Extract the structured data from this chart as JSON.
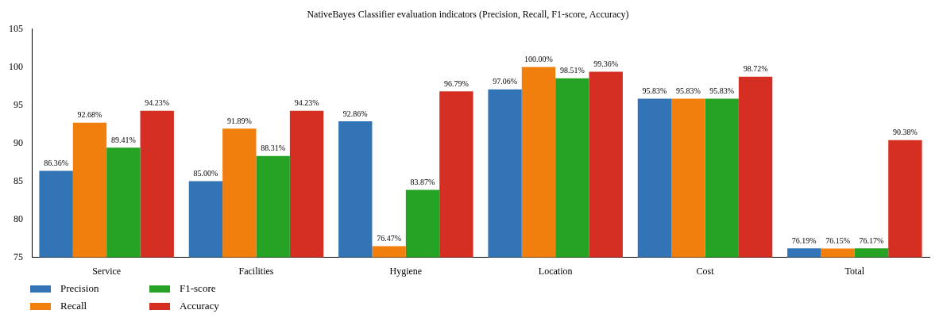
{
  "chart_data": {
    "type": "bar",
    "title": "NativeBayes Classifier evaluation indicators (Precision, Recall, F1-score, Accuracy)",
    "categories": [
      "Service",
      "Facilities",
      "Hygiene",
      "Location",
      "Cost",
      "Total"
    ],
    "series": [
      {
        "name": "Precision",
        "color": "#3274b5",
        "values": [
          86.36,
          85.0,
          92.86,
          97.06,
          95.83,
          76.19
        ],
        "value_labels": [
          "86.36%",
          "85.00%",
          "92.86%",
          "97.06%",
          "95.83%",
          "76.19%"
        ]
      },
      {
        "name": "Recall",
        "color": "#f07f0e",
        "values": [
          92.68,
          91.89,
          76.47,
          100.0,
          95.83,
          76.15
        ],
        "value_labels": [
          "92.68%",
          "91.89%",
          "76.47%",
          "100.00%",
          "95.83%",
          "76.15%"
        ]
      },
      {
        "name": "F1-score",
        "color": "#26a325",
        "values": [
          89.41,
          88.31,
          83.87,
          98.51,
          95.83,
          76.17
        ],
        "value_labels": [
          "89.41%",
          "88.31%",
          "83.87%",
          "98.51%",
          "95.83%",
          "76.17%"
        ]
      },
      {
        "name": "Accuracy",
        "color": "#d42f22",
        "values": [
          94.23,
          94.23,
          96.79,
          99.36,
          98.72,
          90.38
        ],
        "value_labels": [
          "94.23%",
          "94.23%",
          "96.79%",
          "99.36%",
          "98.72%",
          "90.38%"
        ]
      }
    ],
    "ylim": [
      75,
      105
    ],
    "yticks": [
      75,
      80,
      85,
      90,
      95,
      100,
      105
    ],
    "grid": false,
    "legend": "bottom left"
  }
}
